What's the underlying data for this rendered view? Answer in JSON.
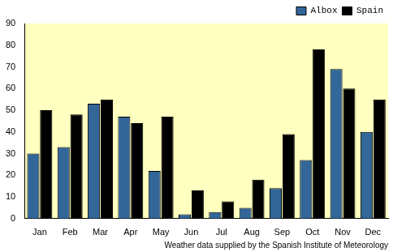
{
  "chart_data": {
    "type": "bar",
    "categories": [
      "Jan",
      "Feb",
      "Mar",
      "Apr",
      "May",
      "Jun",
      "Jul",
      "Aug",
      "Sep",
      "Oct",
      "Nov",
      "Dec"
    ],
    "series": [
      {
        "name": "Albox",
        "color": "#336699",
        "values": [
          30,
          33,
          53,
          47,
          22,
          2,
          3,
          5,
          14,
          27,
          69,
          40
        ]
      },
      {
        "name": "Spain",
        "color": "#000000",
        "values": [
          50,
          48,
          55,
          44,
          47,
          13,
          8,
          18,
          39,
          78,
          60,
          55
        ]
      }
    ],
    "ylim": [
      0,
      90
    ],
    "yticks": [
      0,
      10,
      20,
      30,
      40,
      50,
      60,
      70,
      80,
      90
    ],
    "grid": false,
    "legend": "top right",
    "annotation": "Weather data supplied by the Spanish Institute of Meteorology"
  }
}
